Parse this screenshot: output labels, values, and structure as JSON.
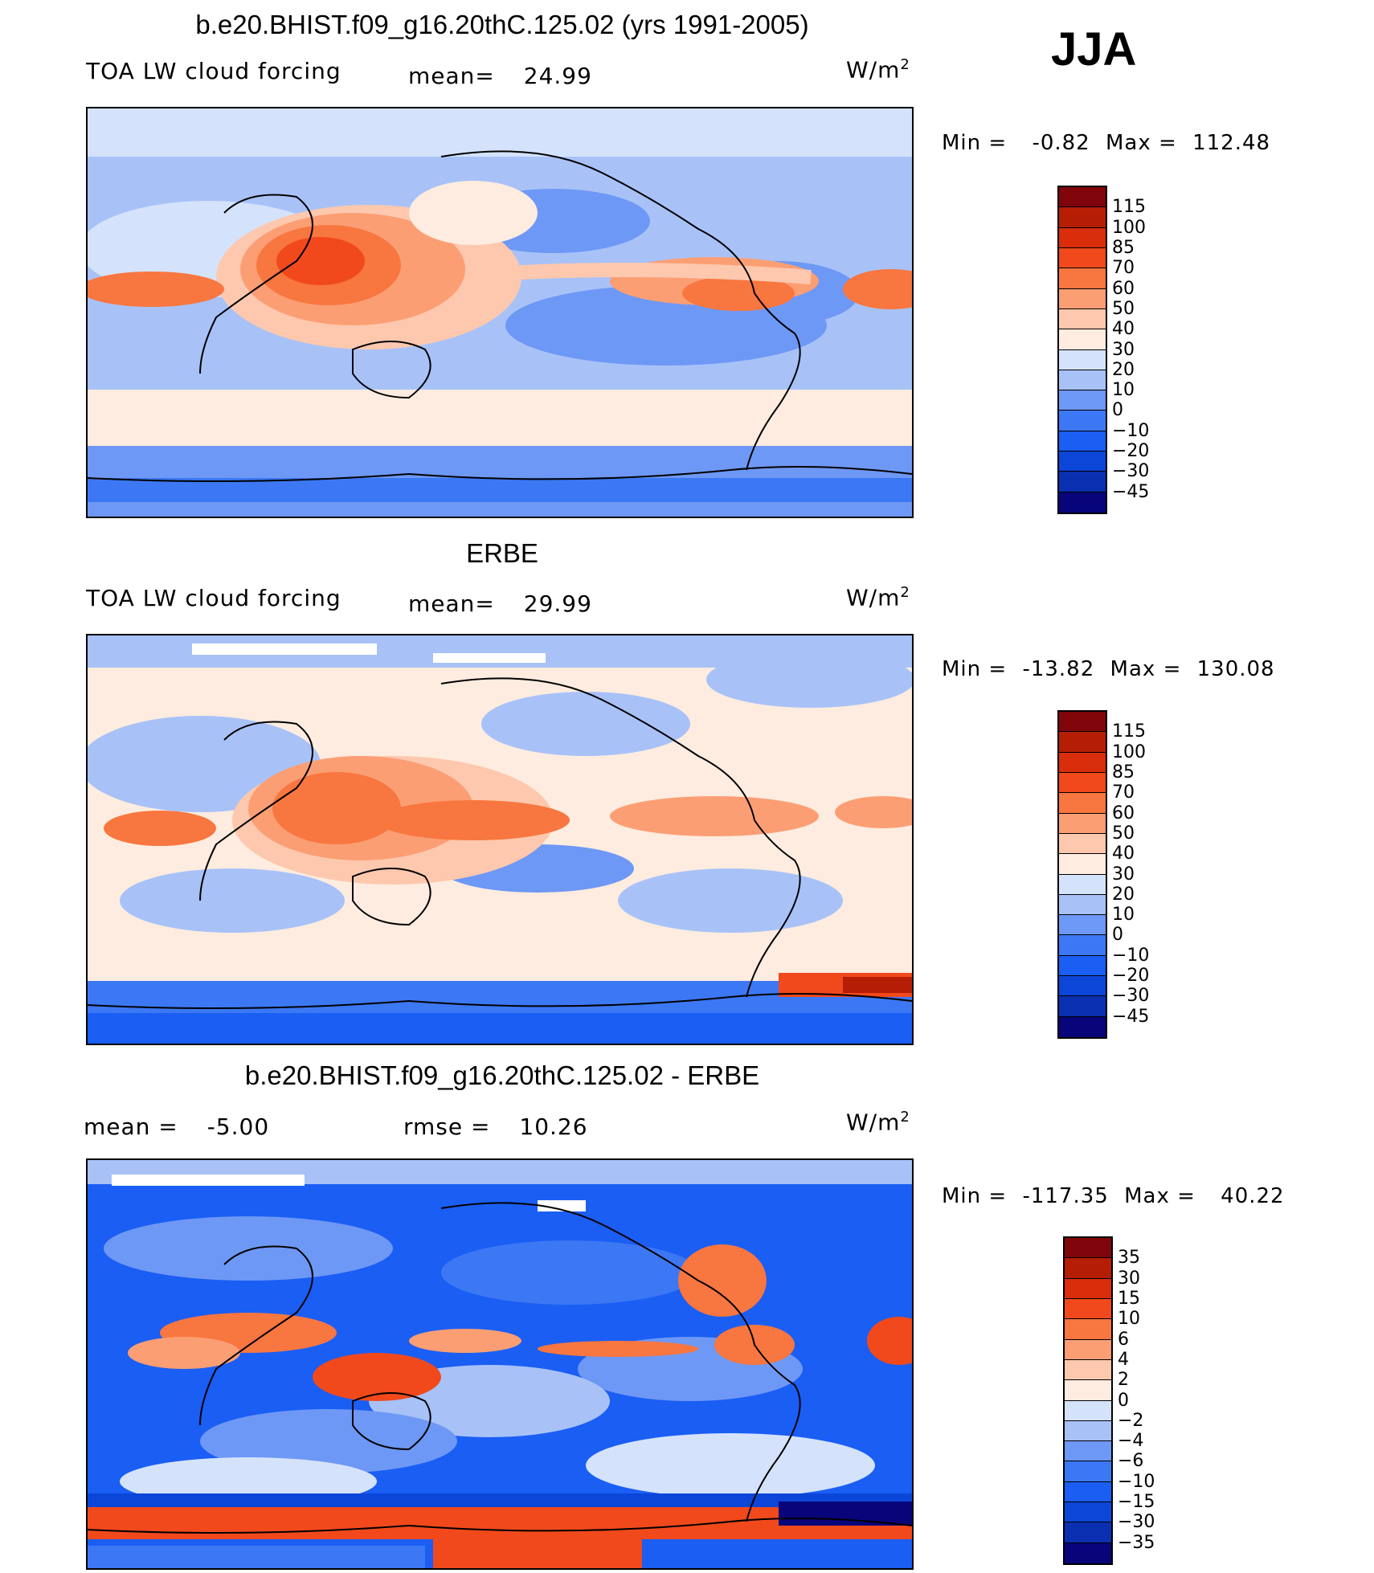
{
  "season": "JJA",
  "colors": {
    "scale": [
      "#08057a",
      "#0a2fb0",
      "#0c46d8",
      "#1a5ef4",
      "#3c78f4",
      "#6e98f5",
      "#a8c2f8",
      "#d4e3fb",
      "#fdecdf",
      "#fdc8ad",
      "#fc9e74",
      "#f8763f",
      "#f1491c",
      "#d92d0c",
      "#b51e05",
      "#80050b"
    ]
  },
  "chart_data": [
    {
      "type": "heatmap",
      "title": "b.e20.BHIST.f09_g16.20thC.125.02 (yrs 1991-2005)",
      "variable": "TOA LW cloud forcing",
      "mean_label": "mean=",
      "mean": "24.99",
      "units": "W/m",
      "units_sup": "2",
      "min_label": "Min =",
      "min": "-0.82",
      "max_label": "Max =",
      "max": "112.48",
      "colorbar_levels": [
        "115",
        "100",
        "85",
        "70",
        "60",
        "50",
        "40",
        "30",
        "20",
        "10",
        "0",
        "−10",
        "−20",
        "−30",
        "−45"
      ]
    },
    {
      "type": "heatmap",
      "title": "ERBE",
      "variable": "TOA LW cloud forcing",
      "mean_label": "mean=",
      "mean": "29.99",
      "units": "W/m",
      "units_sup": "2",
      "min_label": "Min =",
      "min": "-13.82",
      "max_label": "Max =",
      "max": "130.08",
      "colorbar_levels": [
        "115",
        "100",
        "85",
        "70",
        "60",
        "50",
        "40",
        "30",
        "20",
        "10",
        "0",
        "−10",
        "−20",
        "−30",
        "−45"
      ]
    },
    {
      "type": "heatmap",
      "title": "b.e20.BHIST.f09_g16.20thC.125.02 - ERBE",
      "mean_label": "mean =",
      "mean": "-5.00",
      "rmse_label": "rmse =",
      "rmse": "10.26",
      "units": "W/m",
      "units_sup": "2",
      "min_label": "Min =",
      "min": "-117.35",
      "max_label": "Max =",
      "max": "40.22",
      "colorbar_levels": [
        "35",
        "30",
        "15",
        "10",
        "6",
        "4",
        "2",
        "0",
        "−2",
        "−4",
        "−6",
        "−10",
        "−15",
        "−30",
        "−35"
      ]
    }
  ]
}
